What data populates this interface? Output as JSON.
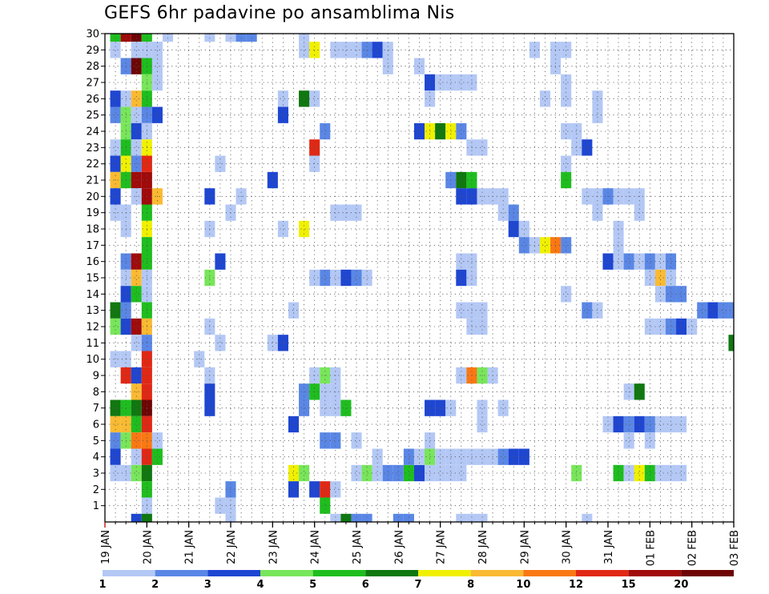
{
  "chart_data": {
    "type": "heatmap",
    "title": "GEFS 6hr padavine po ansamblima Nis",
    "x_tick_labels": [
      "19 JAN",
      "20 JAN",
      "21 JAN",
      "22 JAN",
      "23 JAN",
      "24 JAN",
      "25 JAN",
      "26 JAN",
      "27 JAN",
      "28 JAN",
      "29 JAN",
      "30 JAN",
      "31 JAN",
      "01 FEB",
      "02 FEB",
      "03 FEB"
    ],
    "y_tick_labels": [
      "1",
      "2",
      "3",
      "4",
      "5",
      "6",
      "7",
      "8",
      "9",
      "10",
      "11",
      "12",
      "13",
      "14",
      "15",
      "16",
      "17",
      "18",
      "19",
      "20",
      "21",
      "22",
      "23",
      "24",
      "25",
      "26",
      "27",
      "28",
      "29",
      "30"
    ],
    "xlim": [
      0,
      60
    ],
    "ylim": [
      0,
      30
    ],
    "grid": true,
    "colorbar": {
      "levels": [
        "1",
        "2",
        "3",
        "4",
        "5",
        "6",
        "7",
        "8",
        "10",
        "12",
        "15",
        "20"
      ],
      "colors": [
        "#b4c8f5",
        "#5a87e6",
        "#1e46d2",
        "#78e65a",
        "#1ebe1e",
        "#0f780f",
        "#f0f000",
        "#faba32",
        "#fa7814",
        "#e12814",
        "#a00a0a",
        "#6e0505"
      ]
    },
    "cells": [
      [
        1,
        30,
        4
      ],
      [
        2,
        30,
        10
      ],
      [
        3,
        30,
        11
      ],
      [
        4,
        30,
        4
      ],
      [
        5,
        29,
        0
      ],
      [
        5,
        28,
        0
      ],
      [
        6,
        30,
        0
      ],
      [
        1,
        29,
        0
      ],
      [
        3,
        29,
        0
      ],
      [
        4,
        29,
        0
      ],
      [
        5,
        29,
        0
      ],
      [
        2,
        28,
        1
      ],
      [
        3,
        28,
        11
      ],
      [
        4,
        28,
        4
      ],
      [
        4,
        27,
        3
      ],
      [
        5,
        27,
        0
      ],
      [
        4,
        26,
        4
      ],
      [
        3,
        26,
        7
      ],
      [
        2,
        26,
        0
      ],
      [
        1,
        26,
        2
      ],
      [
        1,
        25,
        1
      ],
      [
        2,
        25,
        3
      ],
      [
        3,
        25,
        0
      ],
      [
        4,
        25,
        1
      ],
      [
        5,
        25,
        2
      ],
      [
        2,
        24,
        3
      ],
      [
        3,
        24,
        2
      ],
      [
        4,
        24,
        0
      ],
      [
        2,
        23,
        4
      ],
      [
        3,
        23,
        0
      ],
      [
        4,
        23,
        6
      ],
      [
        1,
        23,
        0
      ],
      [
        1,
        22,
        2
      ],
      [
        2,
        22,
        6
      ],
      [
        3,
        22,
        1
      ],
      [
        4,
        22,
        9
      ],
      [
        1,
        21,
        7
      ],
      [
        2,
        21,
        4
      ],
      [
        3,
        21,
        10
      ],
      [
        4,
        21,
        10
      ],
      [
        1,
        20,
        2
      ],
      [
        3,
        20,
        0
      ],
      [
        4,
        20,
        10
      ],
      [
        5,
        20,
        7
      ],
      [
        1,
        19,
        0
      ],
      [
        2,
        19,
        0
      ],
      [
        4,
        19,
        4
      ],
      [
        2,
        18,
        0
      ],
      [
        4,
        18,
        6
      ],
      [
        4,
        17,
        4
      ],
      [
        2,
        16,
        1
      ],
      [
        3,
        16,
        10
      ],
      [
        4,
        16,
        4
      ],
      [
        2,
        15,
        0
      ],
      [
        3,
        15,
        7
      ],
      [
        4,
        15,
        0
      ],
      [
        2,
        14,
        2
      ],
      [
        3,
        14,
        4
      ],
      [
        4,
        14,
        0
      ],
      [
        1,
        13,
        5
      ],
      [
        2,
        13,
        1
      ],
      [
        4,
        13,
        4
      ],
      [
        1,
        12,
        3
      ],
      [
        2,
        12,
        2
      ],
      [
        3,
        12,
        10
      ],
      [
        4,
        12,
        7
      ],
      [
        3,
        11,
        0
      ],
      [
        4,
        11,
        1
      ],
      [
        1,
        10,
        0
      ],
      [
        2,
        10,
        0
      ],
      [
        4,
        10,
        9
      ],
      [
        2,
        9,
        9
      ],
      [
        3,
        9,
        2
      ],
      [
        4,
        9,
        9
      ],
      [
        3,
        8,
        7
      ],
      [
        4,
        8,
        9
      ],
      [
        1,
        7,
        5
      ],
      [
        2,
        7,
        4
      ],
      [
        3,
        7,
        5
      ],
      [
        4,
        7,
        11
      ],
      [
        1,
        6,
        7
      ],
      [
        2,
        6,
        7
      ],
      [
        3,
        6,
        4
      ],
      [
        4,
        6,
        9
      ],
      [
        1,
        5,
        1
      ],
      [
        2,
        5,
        3
      ],
      [
        3,
        5,
        8
      ],
      [
        4,
        5,
        8
      ],
      [
        5,
        5,
        0
      ],
      [
        1,
        4,
        2
      ],
      [
        3,
        4,
        0
      ],
      [
        4,
        4,
        9
      ],
      [
        5,
        4,
        4
      ],
      [
        1,
        3,
        0
      ],
      [
        2,
        3,
        0
      ],
      [
        3,
        3,
        3
      ],
      [
        4,
        3,
        5
      ],
      [
        4,
        2,
        4
      ],
      [
        4,
        1,
        0
      ],
      [
        3,
        0,
        2
      ],
      [
        4,
        0,
        5
      ],
      [
        10,
        30,
        0
      ],
      [
        12,
        30,
        0
      ],
      [
        13,
        30,
        1
      ],
      [
        14,
        30,
        1
      ],
      [
        19,
        30,
        0
      ],
      [
        11,
        22,
        0
      ],
      [
        10,
        20,
        2
      ],
      [
        12,
        19,
        0
      ],
      [
        10,
        18,
        0
      ],
      [
        11,
        16,
        2
      ],
      [
        10,
        15,
        3
      ],
      [
        10,
        12,
        0
      ],
      [
        11,
        11,
        0
      ],
      [
        9,
        10,
        0
      ],
      [
        10,
        9,
        0
      ],
      [
        10,
        8,
        2
      ],
      [
        10,
        7,
        2
      ],
      [
        12,
        2,
        1
      ],
      [
        11,
        1,
        0
      ],
      [
        12,
        1,
        0
      ],
      [
        12,
        0,
        0
      ],
      [
        19,
        29,
        0
      ],
      [
        20,
        29,
        6
      ],
      [
        22,
        29,
        0
      ],
      [
        23,
        29,
        0
      ],
      [
        24,
        29,
        0
      ],
      [
        25,
        29,
        1
      ],
      [
        26,
        29,
        2
      ],
      [
        27,
        29,
        0
      ],
      [
        17,
        26,
        0
      ],
      [
        20,
        26,
        0
      ],
      [
        19,
        26,
        5
      ],
      [
        17,
        25,
        2
      ],
      [
        21,
        24,
        1
      ],
      [
        20,
        23,
        9
      ],
      [
        20,
        22,
        0
      ],
      [
        16,
        21,
        2
      ],
      [
        13,
        20,
        0
      ],
      [
        22,
        19,
        0
      ],
      [
        23,
        19,
        0
      ],
      [
        24,
        19,
        0
      ],
      [
        17,
        18,
        0
      ],
      [
        19,
        18,
        6
      ],
      [
        21,
        15,
        1
      ],
      [
        22,
        15,
        0
      ],
      [
        23,
        15,
        2
      ],
      [
        24,
        15,
        1
      ],
      [
        25,
        15,
        0
      ],
      [
        20,
        15,
        0
      ],
      [
        18,
        13,
        0
      ],
      [
        16,
        11,
        0
      ],
      [
        17,
        11,
        2
      ],
      [
        20,
        9,
        0
      ],
      [
        21,
        9,
        3
      ],
      [
        22,
        9,
        0
      ],
      [
        19,
        8,
        1
      ],
      [
        20,
        8,
        4
      ],
      [
        21,
        8,
        0
      ],
      [
        22,
        8,
        0
      ],
      [
        19,
        7,
        1
      ],
      [
        21,
        7,
        0
      ],
      [
        22,
        7,
        0
      ],
      [
        23,
        7,
        4
      ],
      [
        18,
        6,
        2
      ],
      [
        21,
        5,
        1
      ],
      [
        22,
        5,
        1
      ],
      [
        24,
        5,
        0
      ],
      [
        18,
        3,
        6
      ],
      [
        19,
        3,
        3
      ],
      [
        24,
        3,
        0
      ],
      [
        25,
        3,
        3
      ],
      [
        26,
        3,
        0
      ],
      [
        27,
        3,
        1
      ],
      [
        28,
        3,
        1
      ],
      [
        29,
        3,
        4
      ],
      [
        30,
        3,
        2
      ],
      [
        31,
        3,
        0
      ],
      [
        32,
        3,
        0
      ],
      [
        29,
        4,
        1
      ],
      [
        30,
        4,
        0
      ],
      [
        26,
        4,
        0
      ],
      [
        18,
        2,
        2
      ],
      [
        20,
        2,
        2
      ],
      [
        21,
        2,
        9
      ],
      [
        22,
        2,
        0
      ],
      [
        21,
        1,
        4
      ],
      [
        22,
        0,
        0
      ],
      [
        23,
        0,
        5
      ],
      [
        24,
        0,
        1
      ],
      [
        25,
        0,
        1
      ],
      [
        28,
        0,
        1
      ],
      [
        29,
        0,
        1
      ],
      [
        27,
        28,
        0
      ],
      [
        30,
        28,
        0
      ],
      [
        31,
        27,
        2
      ],
      [
        32,
        27,
        0
      ],
      [
        33,
        27,
        0
      ],
      [
        34,
        27,
        0
      ],
      [
        35,
        27,
        0
      ],
      [
        31,
        26,
        0
      ],
      [
        30,
        24,
        2
      ],
      [
        31,
        24,
        6
      ],
      [
        32,
        24,
        5
      ],
      [
        33,
        24,
        6
      ],
      [
        34,
        24,
        1
      ],
      [
        35,
        23,
        0
      ],
      [
        36,
        23,
        0
      ],
      [
        33,
        21,
        1
      ],
      [
        34,
        21,
        5
      ],
      [
        35,
        21,
        4
      ],
      [
        36,
        20,
        0
      ],
      [
        34,
        20,
        2
      ],
      [
        35,
        20,
        2
      ],
      [
        37,
        20,
        0
      ],
      [
        38,
        20,
        0
      ],
      [
        38,
        19,
        0
      ],
      [
        39,
        19,
        1
      ],
      [
        39,
        18,
        2
      ],
      [
        40,
        18,
        0
      ],
      [
        40,
        17,
        1
      ],
      [
        41,
        17,
        0
      ],
      [
        42,
        17,
        6
      ],
      [
        43,
        17,
        8
      ],
      [
        44,
        17,
        1
      ],
      [
        34,
        16,
        0
      ],
      [
        35,
        16,
        0
      ],
      [
        34,
        15,
        2
      ],
      [
        35,
        15,
        0
      ],
      [
        34,
        13,
        0
      ],
      [
        35,
        13,
        0
      ],
      [
        36,
        13,
        0
      ],
      [
        36,
        12,
        0
      ],
      [
        35,
        12,
        0
      ],
      [
        34,
        9,
        0
      ],
      [
        35,
        9,
        8
      ],
      [
        36,
        9,
        3
      ],
      [
        37,
        9,
        0
      ],
      [
        31,
        7,
        2
      ],
      [
        32,
        7,
        2
      ],
      [
        33,
        7,
        0
      ],
      [
        36,
        7,
        0
      ],
      [
        38,
        7,
        0
      ],
      [
        36,
        6,
        0
      ],
      [
        31,
        5,
        0
      ],
      [
        30,
        4,
        0
      ],
      [
        31,
        4,
        3
      ],
      [
        32,
        4,
        0
      ],
      [
        33,
        4,
        0
      ],
      [
        34,
        4,
        0
      ],
      [
        35,
        4,
        0
      ],
      [
        36,
        4,
        0
      ],
      [
        37,
        4,
        0
      ],
      [
        38,
        4,
        1
      ],
      [
        39,
        4,
        2
      ],
      [
        40,
        4,
        2
      ],
      [
        33,
        3,
        0
      ],
      [
        34,
        3,
        0
      ],
      [
        34,
        0,
        0
      ],
      [
        35,
        0,
        0
      ],
      [
        36,
        0,
        0
      ],
      [
        41,
        29,
        0
      ],
      [
        43,
        29,
        0
      ],
      [
        44,
        29,
        0
      ],
      [
        43,
        28,
        0
      ],
      [
        44,
        27,
        0
      ],
      [
        42,
        26,
        0
      ],
      [
        44,
        26,
        0
      ],
      [
        47,
        26,
        0
      ],
      [
        47,
        25,
        0
      ],
      [
        44,
        24,
        0
      ],
      [
        45,
        24,
        0
      ],
      [
        45,
        23,
        0
      ],
      [
        46,
        23,
        2
      ],
      [
        44,
        22,
        0
      ],
      [
        44,
        21,
        4
      ],
      [
        46,
        20,
        0
      ],
      [
        47,
        20,
        0
      ],
      [
        48,
        20,
        1
      ],
      [
        49,
        20,
        0
      ],
      [
        50,
        20,
        0
      ],
      [
        51,
        20,
        0
      ],
      [
        47,
        19,
        0
      ],
      [
        51,
        19,
        0
      ],
      [
        49,
        18,
        0
      ],
      [
        49,
        17,
        0
      ],
      [
        48,
        16,
        2
      ],
      [
        49,
        16,
        0
      ],
      [
        50,
        16,
        1
      ],
      [
        51,
        16,
        0
      ],
      [
        52,
        16,
        1
      ],
      [
        53,
        16,
        0
      ],
      [
        54,
        16,
        1
      ],
      [
        52,
        15,
        0
      ],
      [
        53,
        15,
        7
      ],
      [
        54,
        15,
        0
      ],
      [
        53,
        14,
        0
      ],
      [
        54,
        14,
        1
      ],
      [
        55,
        14,
        1
      ],
      [
        57,
        13,
        1
      ],
      [
        58,
        13,
        2
      ],
      [
        59,
        13,
        1
      ],
      [
        60,
        13,
        1
      ],
      [
        46,
        13,
        1
      ],
      [
        47,
        13,
        0
      ],
      [
        44,
        14,
        0
      ],
      [
        52,
        12,
        0
      ],
      [
        53,
        12,
        0
      ],
      [
        54,
        12,
        1
      ],
      [
        55,
        12,
        2
      ],
      [
        56,
        12,
        0
      ],
      [
        60,
        11,
        5
      ],
      [
        50,
        8,
        0
      ],
      [
        51,
        8,
        5
      ],
      [
        48,
        6,
        0
      ],
      [
        49,
        6,
        2
      ],
      [
        50,
        6,
        1
      ],
      [
        51,
        6,
        2
      ],
      [
        52,
        6,
        1
      ],
      [
        53,
        6,
        0
      ],
      [
        54,
        6,
        0
      ],
      [
        55,
        6,
        0
      ],
      [
        50,
        5,
        0
      ],
      [
        52,
        5,
        0
      ],
      [
        49,
        3,
        4
      ],
      [
        50,
        3,
        0
      ],
      [
        51,
        3,
        6
      ],
      [
        52,
        3,
        4
      ],
      [
        53,
        3,
        0
      ],
      [
        54,
        3,
        0
      ],
      [
        55,
        3,
        0
      ],
      [
        45,
        3,
        3
      ],
      [
        46,
        0,
        0
      ]
    ]
  }
}
